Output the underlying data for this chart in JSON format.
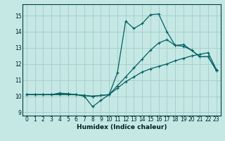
{
  "xlabel": "Humidex (Indice chaleur)",
  "background_color": "#c5e8e5",
  "grid_color": "#a8d0cc",
  "line_color": "#006060",
  "xlim": [
    -0.5,
    23.5
  ],
  "ylim": [
    8.8,
    15.7
  ],
  "yticks": [
    9,
    10,
    11,
    12,
    13,
    14,
    15
  ],
  "xticks": [
    0,
    1,
    2,
    3,
    4,
    5,
    6,
    7,
    8,
    9,
    10,
    11,
    12,
    13,
    14,
    15,
    16,
    17,
    18,
    19,
    20,
    21,
    22,
    23
  ],
  "line1_x": [
    0,
    1,
    2,
    3,
    4,
    5,
    6,
    7,
    8,
    9,
    10,
    11,
    12,
    13,
    14,
    15,
    16,
    17,
    18,
    19,
    20,
    21,
    22,
    23
  ],
  "line1_y": [
    10.1,
    10.1,
    10.1,
    10.1,
    10.1,
    10.1,
    10.1,
    10.05,
    10.0,
    10.05,
    10.1,
    10.5,
    10.9,
    11.2,
    11.5,
    11.7,
    11.85,
    12.0,
    12.2,
    12.35,
    12.5,
    12.6,
    12.7,
    11.65
  ],
  "line2_x": [
    0,
    1,
    2,
    3,
    4,
    5,
    6,
    7,
    8,
    9,
    10,
    11,
    12,
    13,
    14,
    15,
    16,
    17,
    18,
    19,
    20,
    21,
    22,
    23
  ],
  "line2_y": [
    10.1,
    10.1,
    10.1,
    10.1,
    10.2,
    10.15,
    10.1,
    10.0,
    9.35,
    9.75,
    10.1,
    11.45,
    14.65,
    14.2,
    14.5,
    15.05,
    15.1,
    14.0,
    13.15,
    13.2,
    12.85,
    12.45,
    12.45,
    11.6
  ],
  "line3_x": [
    0,
    1,
    2,
    3,
    4,
    5,
    6,
    7,
    8,
    9,
    10,
    11,
    12,
    13,
    14,
    15,
    16,
    17,
    18,
    19,
    20,
    21,
    22,
    23
  ],
  "line3_y": [
    10.1,
    10.1,
    10.1,
    10.1,
    10.15,
    10.15,
    10.1,
    10.05,
    10.0,
    10.05,
    10.1,
    10.65,
    11.2,
    11.75,
    12.3,
    12.85,
    13.3,
    13.5,
    13.15,
    13.1,
    12.85,
    12.45,
    12.45,
    11.6
  ]
}
